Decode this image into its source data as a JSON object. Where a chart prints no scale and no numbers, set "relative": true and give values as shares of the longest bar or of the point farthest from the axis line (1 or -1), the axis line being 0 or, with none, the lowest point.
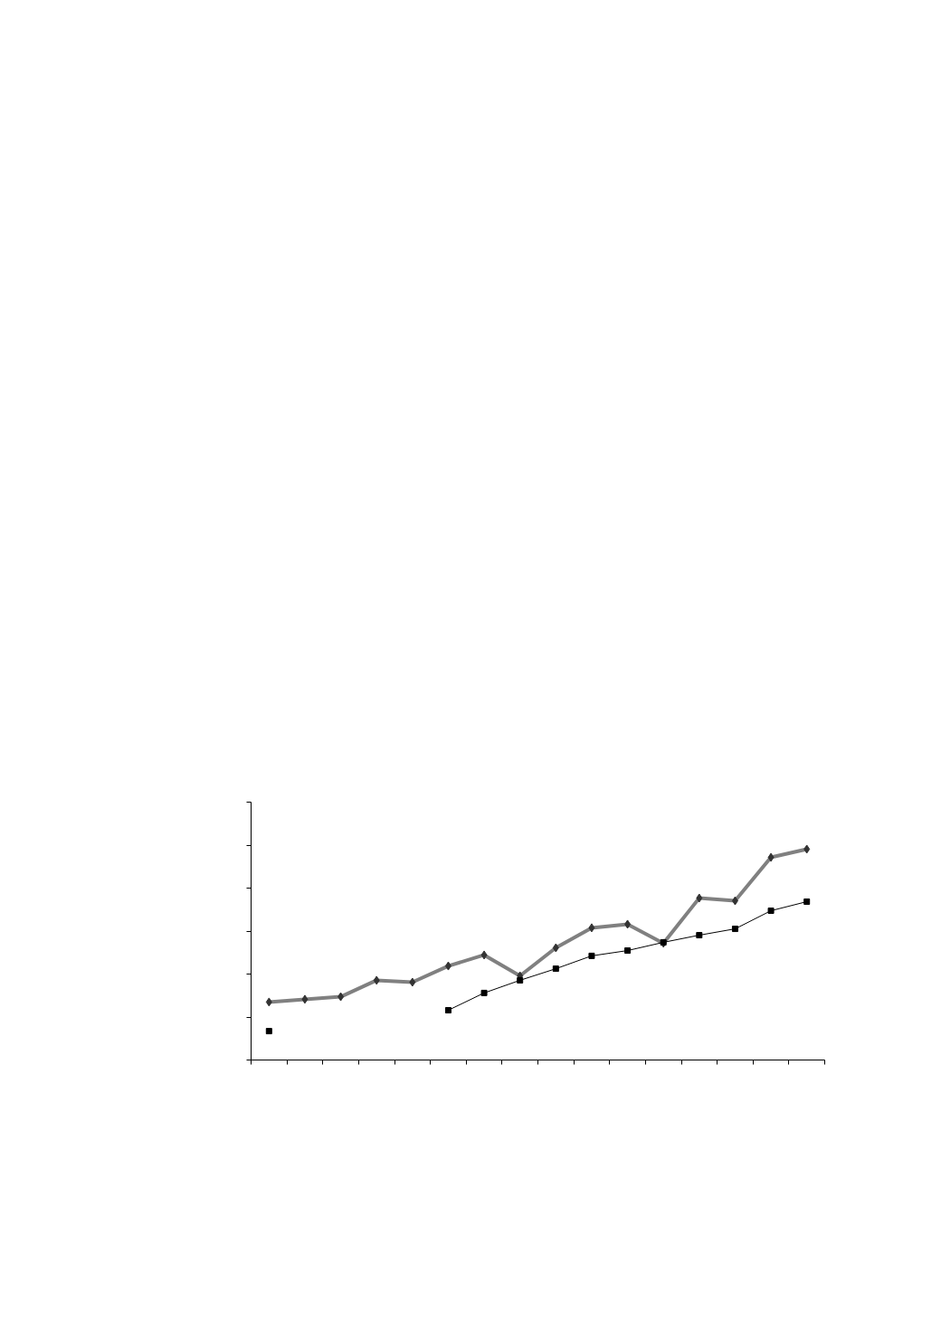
{
  "chart_data": {
    "type": "line",
    "relative": true,
    "grid": false,
    "tick_labels": false,
    "categories": [
      null,
      null,
      null,
      null,
      null,
      null,
      null,
      null,
      null,
      null,
      null,
      null,
      null,
      null,
      null,
      null
    ],
    "series": [
      {
        "color": "#808080",
        "marker": "diamond",
        "line_style": "solid",
        "values": [
          0.275,
          0.288,
          0.3,
          0.378,
          0.369,
          0.446,
          0.498,
          0.399,
          0.532,
          0.627,
          0.644,
          0.554,
          0.768,
          0.755,
          0.961,
          1
        ]
      },
      {
        "color": "#000000",
        "marker": "square",
        "line_style": "solid",
        "values": [
          0.137,
          null,
          null,
          null,
          null,
          0.236,
          0.318,
          0.378,
          0.433,
          0.494,
          0.519,
          0.558,
          0.592,
          0.622,
          0.708,
          0.751
        ]
      }
    ]
  }
}
